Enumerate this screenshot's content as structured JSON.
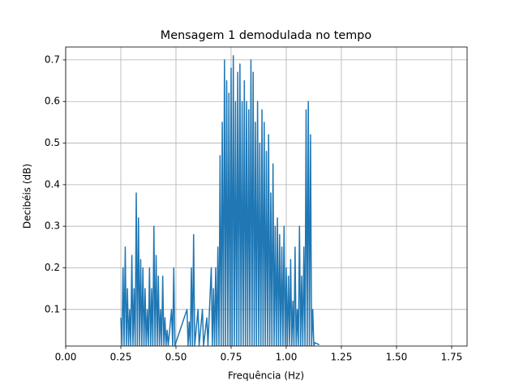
{
  "chart_data": {
    "type": "line",
    "title": "Mensagem 1 demodulada no tempo",
    "xlabel": "Frequência (Hz)",
    "ylabel": "Decibéis (dB)",
    "x": [
      0.25,
      0.255,
      0.26,
      0.265,
      0.27,
      0.275,
      0.28,
      0.285,
      0.29,
      0.295,
      0.3,
      0.305,
      0.31,
      0.315,
      0.32,
      0.325,
      0.33,
      0.335,
      0.34,
      0.345,
      0.35,
      0.355,
      0.36,
      0.365,
      0.37,
      0.375,
      0.38,
      0.385,
      0.39,
      0.395,
      0.4,
      0.405,
      0.41,
      0.415,
      0.42,
      0.425,
      0.43,
      0.435,
      0.44,
      0.445,
      0.45,
      0.455,
      0.46,
      0.465,
      0.48,
      0.485,
      0.49,
      0.495,
      0.55,
      0.555,
      0.56,
      0.565,
      0.57,
      0.575,
      0.58,
      0.585,
      0.6,
      0.605,
      0.62,
      0.625,
      0.64,
      0.645,
      0.66,
      0.665,
      0.67,
      0.675,
      0.68,
      0.685,
      0.69,
      0.695,
      0.7,
      0.705,
      0.71,
      0.715,
      0.72,
      0.725,
      0.73,
      0.735,
      0.74,
      0.745,
      0.75,
      0.755,
      0.76,
      0.765,
      0.77,
      0.775,
      0.78,
      0.785,
      0.79,
      0.795,
      0.8,
      0.805,
      0.81,
      0.815,
      0.82,
      0.825,
      0.83,
      0.835,
      0.84,
      0.845,
      0.85,
      0.855,
      0.86,
      0.865,
      0.87,
      0.875,
      0.88,
      0.885,
      0.89,
      0.895,
      0.9,
      0.905,
      0.91,
      0.915,
      0.92,
      0.925,
      0.93,
      0.935,
      0.94,
      0.945,
      0.95,
      0.955,
      0.96,
      0.965,
      0.97,
      0.975,
      0.98,
      0.985,
      0.99,
      0.995,
      1.0,
      1.005,
      1.01,
      1.015,
      1.02,
      1.025,
      1.03,
      1.035,
      1.04,
      1.045,
      1.05,
      1.055,
      1.06,
      1.065,
      1.07,
      1.075,
      1.08,
      1.085,
      1.09,
      1.095,
      1.1,
      1.105,
      1.11,
      1.115,
      1.12,
      1.125,
      1.13,
      1.15
    ],
    "values": [
      0.08,
      0.013,
      0.2,
      0.013,
      0.25,
      0.013,
      0.15,
      0.013,
      0.1,
      0.013,
      0.23,
      0.013,
      0.15,
      0.013,
      0.38,
      0.013,
      0.32,
      0.013,
      0.22,
      0.013,
      0.2,
      0.013,
      0.15,
      0.013,
      0.1,
      0.013,
      0.2,
      0.013,
      0.15,
      0.013,
      0.3,
      0.013,
      0.23,
      0.013,
      0.18,
      0.013,
      0.1,
      0.013,
      0.18,
      0.013,
      0.08,
      0.013,
      0.05,
      0.013,
      0.1,
      0.013,
      0.2,
      0.013,
      0.1,
      0.013,
      0.07,
      0.013,
      0.2,
      0.013,
      0.28,
      0.013,
      0.1,
      0.013,
      0.1,
      0.013,
      0.08,
      0.013,
      0.2,
      0.013,
      0.15,
      0.013,
      0.2,
      0.013,
      0.25,
      0.013,
      0.47,
      0.013,
      0.55,
      0.013,
      0.7,
      0.013,
      0.65,
      0.013,
      0.62,
      0.013,
      0.68,
      0.013,
      0.71,
      0.013,
      0.6,
      0.013,
      0.67,
      0.013,
      0.69,
      0.013,
      0.6,
      0.013,
      0.65,
      0.013,
      0.6,
      0.013,
      0.58,
      0.013,
      0.7,
      0.013,
      0.67,
      0.013,
      0.55,
      0.013,
      0.6,
      0.013,
      0.5,
      0.013,
      0.58,
      0.013,
      0.55,
      0.013,
      0.48,
      0.013,
      0.52,
      0.013,
      0.38,
      0.013,
      0.45,
      0.013,
      0.3,
      0.013,
      0.32,
      0.013,
      0.28,
      0.013,
      0.25,
      0.013,
      0.3,
      0.013,
      0.2,
      0.013,
      0.18,
      0.013,
      0.22,
      0.013,
      0.12,
      0.013,
      0.25,
      0.013,
      0.1,
      0.013,
      0.3,
      0.013,
      0.18,
      0.013,
      0.25,
      0.013,
      0.58,
      0.013,
      0.6,
      0.013,
      0.52,
      0.013,
      0.1,
      0.013,
      0.02,
      0.015
    ],
    "color": "#1f77b4",
    "xlim": [
      0,
      1.82
    ],
    "ylim": [
      0.012,
      0.731
    ],
    "xticks": [
      {
        "value": 0,
        "label": "0.00"
      },
      {
        "value": 0.25,
        "label": "0.25"
      },
      {
        "value": 0.5,
        "label": "0.50"
      },
      {
        "value": 0.75,
        "label": "0.75"
      },
      {
        "value": 1,
        "label": "1.00"
      },
      {
        "value": 1.25,
        "label": "1.25"
      },
      {
        "value": 1.5,
        "label": "1.50"
      },
      {
        "value": 1.75,
        "label": "1.75"
      }
    ],
    "yticks": [
      0.1,
      0.2,
      0.3,
      0.4,
      0.5,
      0.6,
      0.7
    ],
    "grid": true
  }
}
